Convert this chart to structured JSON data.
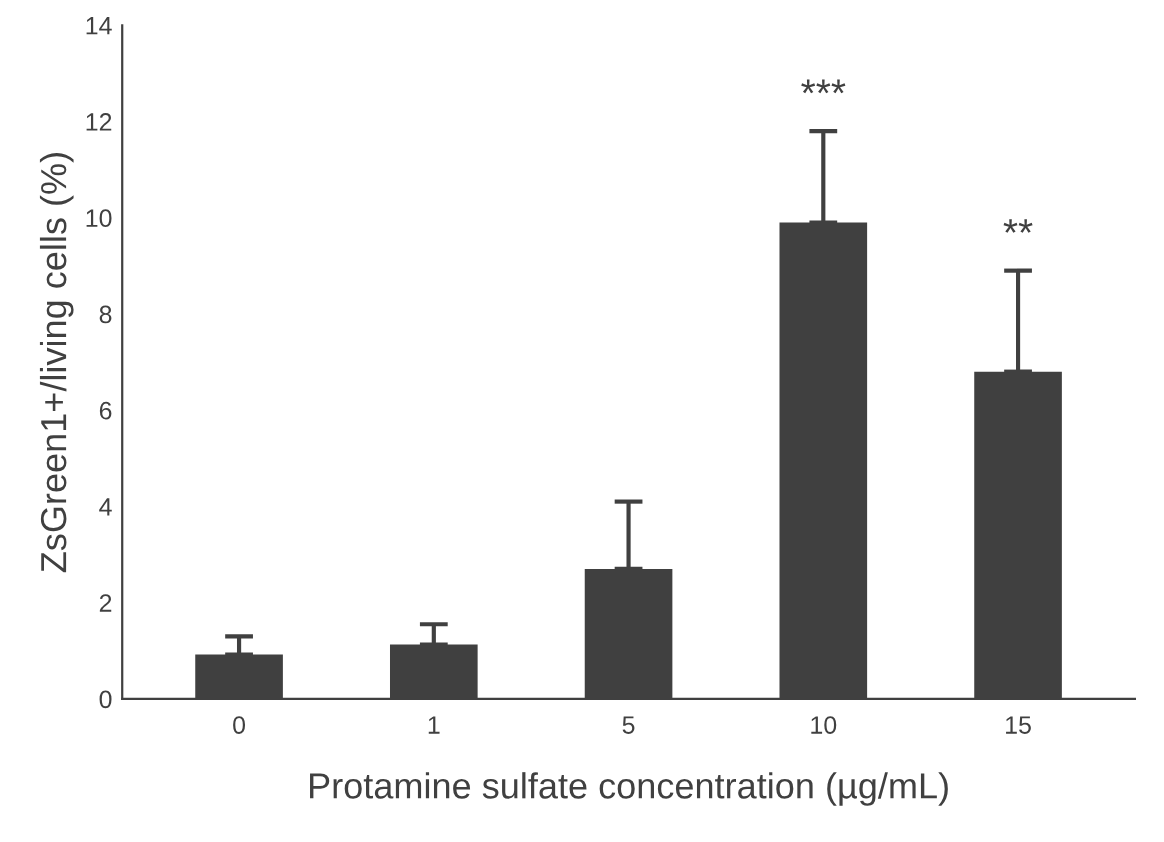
{
  "chart_data": {
    "type": "bar",
    "xlabel": "Protamine sulfate concentration (µg/mL)",
    "ylabel": "ZsGreen1+/living cells (%)",
    "categories": [
      "0",
      "1",
      "5",
      "10",
      "15"
    ],
    "values": [
      0.92,
      1.13,
      2.7,
      9.9,
      6.8
    ],
    "errors": [
      [
        0.92,
        1.3
      ],
      [
        1.13,
        1.55
      ],
      [
        2.7,
        4.1
      ],
      [
        9.9,
        11.8
      ],
      [
        6.8,
        8.9
      ]
    ],
    "color": "#404040",
    "ylim": [
      0,
      14
    ],
    "yticks": [
      0,
      2,
      4,
      6,
      8,
      10,
      12,
      14
    ],
    "grid": false,
    "annotations": [
      {
        "text": "***",
        "x": "10",
        "y": 11.8
      },
      {
        "text": "**",
        "x": "15",
        "y": 8.9
      }
    ]
  }
}
